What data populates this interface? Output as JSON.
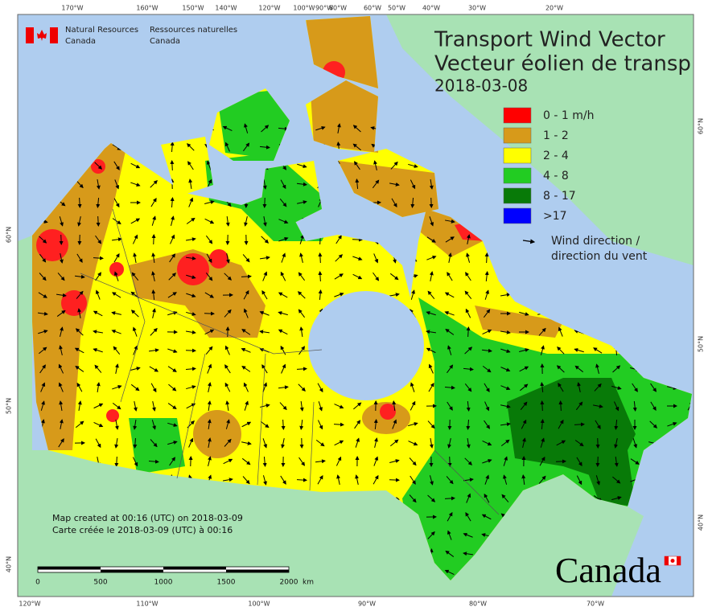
{
  "header": {
    "logo_en": [
      "Natural Resources",
      "Canada"
    ],
    "logo_fr": [
      "Ressources naturelles",
      "Canada"
    ]
  },
  "title": [
    "Transport Wind Vector",
    "Vecteur éolien de transp"
  ],
  "date": "2018-03-08",
  "legend": {
    "items": [
      {
        "label": "0 - 1 m/h",
        "color": "#ff0000"
      },
      {
        "label": "1 - 2",
        "color": "#d79a1a"
      },
      {
        "label": "2 - 4",
        "color": "#ffff00"
      },
      {
        "label": "4 - 8",
        "color": "#22cc22"
      },
      {
        "label": "8 - 17",
        "color": "#087a08"
      },
      {
        "label": ">17",
        "color": "#0000ff"
      }
    ],
    "arrow_label": [
      "Wind direction /",
      "direction du vent"
    ]
  },
  "notes": [
    "Map created at 00:16 (UTC) on 2018-03-09",
    "Carte créée le 2018-03-09 (UTC) à 00:16"
  ],
  "scale_bar": {
    "labels": [
      "0",
      "500",
      "1000",
      "1500",
      "2000"
    ],
    "unit": "km"
  },
  "graticule": {
    "top": [
      "170°W",
      "160°W",
      "150°W",
      "140°W",
      "120°W",
      "100°W",
      "90°W",
      "80°W",
      "60°W",
      "50°W",
      "40°W",
      "30°W",
      "20°W"
    ],
    "bottom": [
      "120°W",
      "110°W",
      "100°W",
      "90°W",
      "80°W",
      "70°W"
    ],
    "left": [
      "60°N",
      "50°N",
      "40°N"
    ],
    "right": [
      "60°N",
      "50°N",
      "40°N"
    ]
  },
  "wordmark": "Canada"
}
